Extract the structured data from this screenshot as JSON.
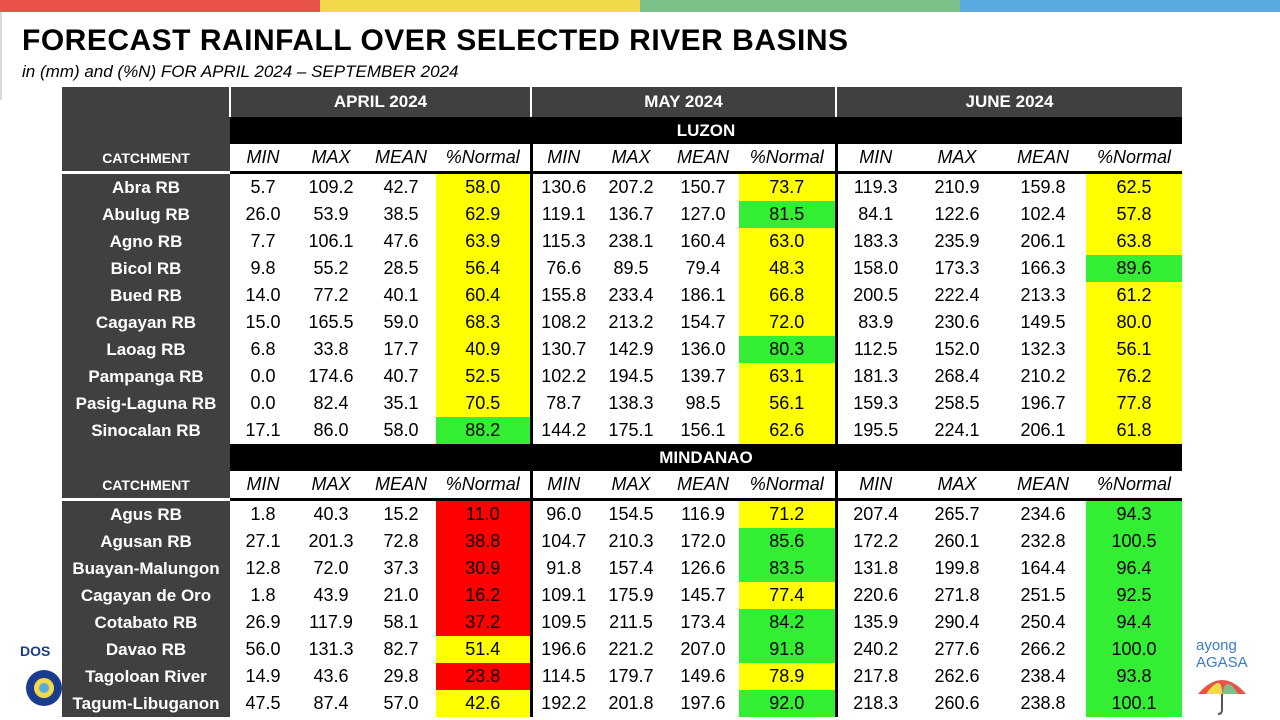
{
  "title": "FORECAST RAINFALL OVER SELECTED RIVER BASINS",
  "subtitle": "in (mm) and (%N) FOR  APRIL 2024 – SEPTEMBER 2024",
  "colors": {
    "top_bar": [
      "#e8524a",
      "#f2d94a",
      "#7cc08a",
      "#5aa9e0"
    ],
    "header_bg": "#404040",
    "region_bg": "#000000",
    "yellow": "#ffff00",
    "green": "#33ee33",
    "red": "#ff0000"
  },
  "logos": {
    "left_text": "DOS",
    "right_text_1": "ayong",
    "right_text_2": "AGASA",
    "right_icon": "umbrella-icon"
  },
  "chart_data": {
    "type": "table",
    "months": [
      "APRIL 2024",
      "MAY 2024",
      "JUNE 2024"
    ],
    "column_headers": [
      "MIN",
      "MAX",
      "MEAN",
      "%Normal"
    ],
    "catchment_label": "CATCHMENT",
    "regions": [
      {
        "name": "LUZON",
        "rows": [
          {
            "catchment": "Abra RB",
            "values": [
              [
                "5.7",
                "109.2",
                "42.7",
                "58.0"
              ],
              [
                "130.6",
                "207.2",
                "150.7",
                "73.7"
              ],
              [
                "119.3",
                "210.9",
                "159.8",
                "62.5"
              ]
            ],
            "colors": [
              "yellow",
              "yellow",
              "yellow"
            ]
          },
          {
            "catchment": "Abulug RB",
            "values": [
              [
                "26.0",
                "53.9",
                "38.5",
                "62.9"
              ],
              [
                "119.1",
                "136.7",
                "127.0",
                "81.5"
              ],
              [
                "84.1",
                "122.6",
                "102.4",
                "57.8"
              ]
            ],
            "colors": [
              "yellow",
              "green",
              "yellow"
            ]
          },
          {
            "catchment": "Agno RB",
            "values": [
              [
                "7.7",
                "106.1",
                "47.6",
                "63.9"
              ],
              [
                "115.3",
                "238.1",
                "160.4",
                "63.0"
              ],
              [
                "183.3",
                "235.9",
                "206.1",
                "63.8"
              ]
            ],
            "colors": [
              "yellow",
              "yellow",
              "yellow"
            ]
          },
          {
            "catchment": "Bicol RB",
            "values": [
              [
                "9.8",
                "55.2",
                "28.5",
                "56.4"
              ],
              [
                "76.6",
                "89.5",
                "79.4",
                "48.3"
              ],
              [
                "158.0",
                "173.3",
                "166.3",
                "89.6"
              ]
            ],
            "colors": [
              "yellow",
              "yellow",
              "green"
            ]
          },
          {
            "catchment": "Bued RB",
            "values": [
              [
                "14.0",
                "77.2",
                "40.1",
                "60.4"
              ],
              [
                "155.8",
                "233.4",
                "186.1",
                "66.8"
              ],
              [
                "200.5",
                "222.4",
                "213.3",
                "61.2"
              ]
            ],
            "colors": [
              "yellow",
              "yellow",
              "yellow"
            ]
          },
          {
            "catchment": "Cagayan RB",
            "values": [
              [
                "15.0",
                "165.5",
                "59.0",
                "68.3"
              ],
              [
                "108.2",
                "213.2",
                "154.7",
                "72.0"
              ],
              [
                "83.9",
                "230.6",
                "149.5",
                "80.0"
              ]
            ],
            "colors": [
              "yellow",
              "yellow",
              "yellow"
            ]
          },
          {
            "catchment": "Laoag RB",
            "values": [
              [
                "6.8",
                "33.8",
                "17.7",
                "40.9"
              ],
              [
                "130.7",
                "142.9",
                "136.0",
                "80.3"
              ],
              [
                "112.5",
                "152.0",
                "132.3",
                "56.1"
              ]
            ],
            "colors": [
              "yellow",
              "green",
              "yellow"
            ]
          },
          {
            "catchment": "Pampanga RB",
            "values": [
              [
                "0.0",
                "174.6",
                "40.7",
                "52.5"
              ],
              [
                "102.2",
                "194.5",
                "139.7",
                "63.1"
              ],
              [
                "181.3",
                "268.4",
                "210.2",
                "76.2"
              ]
            ],
            "colors": [
              "yellow",
              "yellow",
              "yellow"
            ]
          },
          {
            "catchment": "Pasig-Laguna RB",
            "values": [
              [
                "0.0",
                "82.4",
                "35.1",
                "70.5"
              ],
              [
                "78.7",
                "138.3",
                "98.5",
                "56.1"
              ],
              [
                "159.3",
                "258.5",
                "196.7",
                "77.8"
              ]
            ],
            "colors": [
              "yellow",
              "yellow",
              "yellow"
            ]
          },
          {
            "catchment": "Sinocalan RB",
            "values": [
              [
                "17.1",
                "86.0",
                "58.0",
                "88.2"
              ],
              [
                "144.2",
                "175.1",
                "156.1",
                "62.6"
              ],
              [
                "195.5",
                "224.1",
                "206.1",
                "61.8"
              ]
            ],
            "colors": [
              "green",
              "yellow",
              "yellow"
            ]
          }
        ]
      },
      {
        "name": "MINDANAO",
        "rows": [
          {
            "catchment": "Agus RB",
            "values": [
              [
                "1.8",
                "40.3",
                "15.2",
                "11.0"
              ],
              [
                "96.0",
                "154.5",
                "116.9",
                "71.2"
              ],
              [
                "207.4",
                "265.7",
                "234.6",
                "94.3"
              ]
            ],
            "colors": [
              "red",
              "yellow",
              "green"
            ]
          },
          {
            "catchment": "Agusan RB",
            "values": [
              [
                "27.1",
                "201.3",
                "72.8",
                "38.8"
              ],
              [
                "104.7",
                "210.3",
                "172.0",
                "85.6"
              ],
              [
                "172.2",
                "260.1",
                "232.8",
                "100.5"
              ]
            ],
            "colors": [
              "red",
              "green",
              "green"
            ]
          },
          {
            "catchment": "Buayan-Malungon",
            "values": [
              [
                "12.8",
                "72.0",
                "37.3",
                "30.9"
              ],
              [
                "91.8",
                "157.4",
                "126.6",
                "83.5"
              ],
              [
                "131.8",
                "199.8",
                "164.4",
                "96.4"
              ]
            ],
            "colors": [
              "red",
              "green",
              "green"
            ]
          },
          {
            "catchment": "Cagayan de Oro",
            "values": [
              [
                "1.8",
                "43.9",
                "21.0",
                "16.2"
              ],
              [
                "109.1",
                "175.9",
                "145.7",
                "77.4"
              ],
              [
                "220.6",
                "271.8",
                "251.5",
                "92.5"
              ]
            ],
            "colors": [
              "red",
              "yellow",
              "green"
            ]
          },
          {
            "catchment": "Cotabato RB",
            "values": [
              [
                "26.9",
                "117.9",
                "58.1",
                "37.2"
              ],
              [
                "109.5",
                "211.5",
                "173.4",
                "84.2"
              ],
              [
                "135.9",
                "290.4",
                "250.4",
                "94.4"
              ]
            ],
            "colors": [
              "red",
              "green",
              "green"
            ]
          },
          {
            "catchment": "Davao RB",
            "values": [
              [
                "56.0",
                "131.3",
                "82.7",
                "51.4"
              ],
              [
                "196.6",
                "221.2",
                "207.0",
                "91.8"
              ],
              [
                "240.2",
                "277.6",
                "266.2",
                "100.0"
              ]
            ],
            "colors": [
              "yellow",
              "green",
              "green"
            ]
          },
          {
            "catchment": "Tagoloan River",
            "values": [
              [
                "14.9",
                "43.6",
                "29.8",
                "23.8"
              ],
              [
                "114.5",
                "179.7",
                "149.6",
                "78.9"
              ],
              [
                "217.8",
                "262.6",
                "238.4",
                "93.8"
              ]
            ],
            "colors": [
              "red",
              "yellow",
              "green"
            ]
          },
          {
            "catchment": "Tagum-Libuganon",
            "values": [
              [
                "47.5",
                "87.4",
                "57.0",
                "42.6"
              ],
              [
                "192.2",
                "201.8",
                "197.6",
                "92.0"
              ],
              [
                "218.3",
                "260.6",
                "238.8",
                "100.1"
              ]
            ],
            "colors": [
              "yellow",
              "green",
              "green"
            ]
          }
        ]
      }
    ]
  }
}
